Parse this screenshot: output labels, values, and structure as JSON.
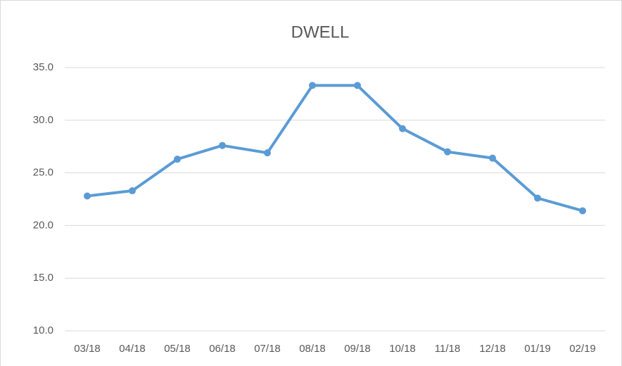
{
  "chart_data": {
    "type": "line",
    "title": "DWELL",
    "categories": [
      "03/18",
      "04/18",
      "05/18",
      "06/18",
      "07/18",
      "08/18",
      "09/18",
      "10/18",
      "11/18",
      "12/18",
      "01/19",
      "02/19"
    ],
    "series": [
      {
        "name": "DWELL",
        "color": "#5b9bd5",
        "values": [
          22.8,
          23.3,
          26.3,
          27.6,
          26.9,
          33.3,
          33.3,
          29.2,
          27.0,
          26.4,
          22.6,
          21.4
        ]
      }
    ],
    "ylim": [
      10,
      35
    ],
    "yticks": [
      {
        "value": 10,
        "label": "10.0"
      },
      {
        "value": 15,
        "label": "15.0"
      },
      {
        "value": 20,
        "label": "20.0"
      },
      {
        "value": 25,
        "label": "25.0"
      },
      {
        "value": 30,
        "label": "30.0"
      },
      {
        "value": 35,
        "label": "35.0"
      }
    ],
    "grid": true
  }
}
